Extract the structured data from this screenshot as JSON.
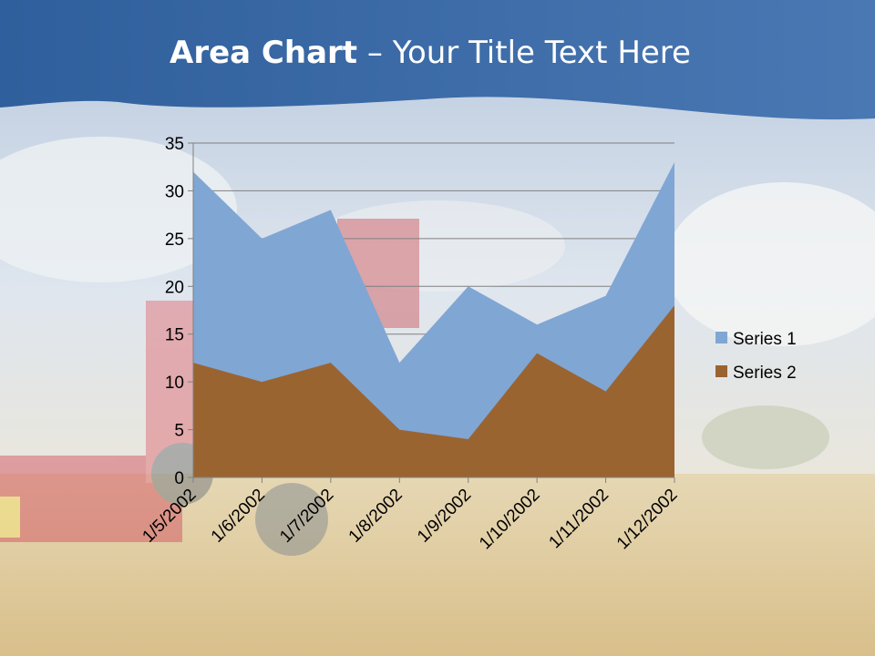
{
  "slide": {
    "title_bold": "Area Chart",
    "title_sep": " – ",
    "title_rest": "Your Title Text Here"
  },
  "colors": {
    "header_blue": "#3f6fa8",
    "series1": "#80a6d4",
    "series2": "#9a6431"
  },
  "chart_data": {
    "type": "area",
    "categories": [
      "1/5/2002",
      "1/6/2002",
      "1/7/2002",
      "1/8/2002",
      "1/9/2002",
      "1/10/2002",
      "1/11/2002",
      "1/12/2002"
    ],
    "series": [
      {
        "name": "Series 1",
        "values": [
          32,
          25,
          28,
          12,
          20,
          16,
          19,
          33
        ]
      },
      {
        "name": "Series 2",
        "values": [
          12,
          10,
          12,
          5,
          4,
          13,
          9,
          18
        ]
      }
    ],
    "yticks": [
      0,
      5,
      10,
      15,
      20,
      25,
      30,
      35
    ],
    "ylim": [
      0,
      35
    ],
    "grid": true,
    "legend_position": "right"
  }
}
